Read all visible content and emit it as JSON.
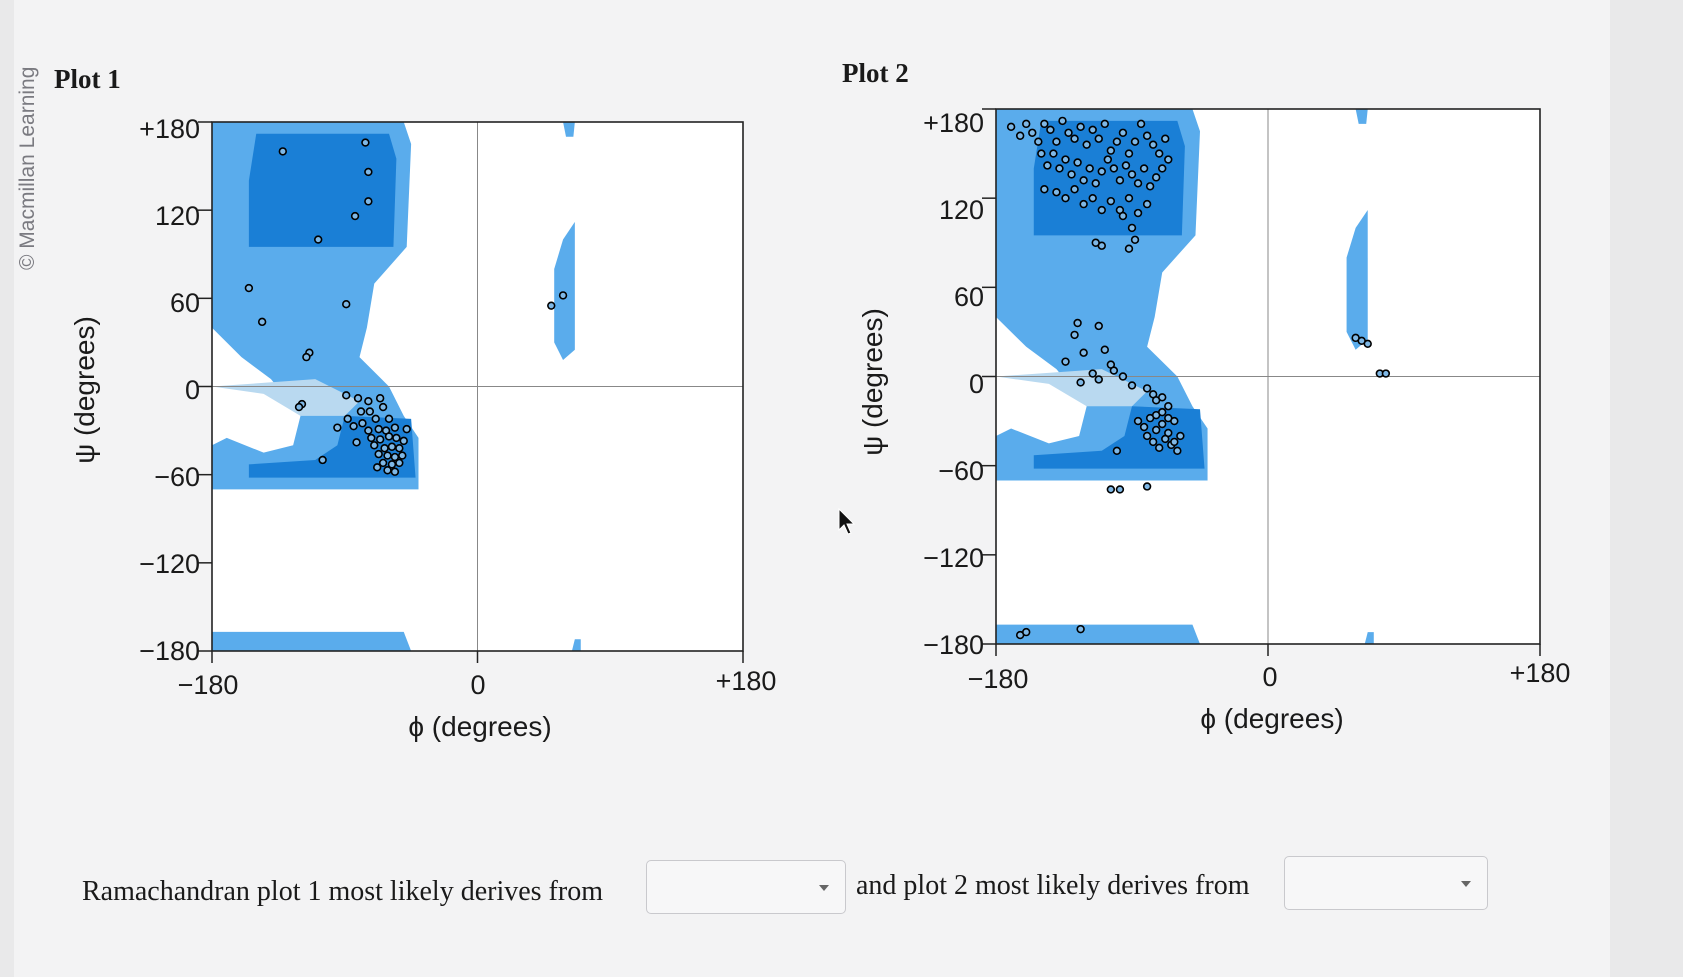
{
  "copyright": "© Macmillan Learning",
  "colors": {
    "core_region": "#1a7fd6",
    "allowed_region": "#5aacec",
    "generous_region": "#b9d9f0",
    "point_fill": "#7fb8e6",
    "point_stroke": "#000000"
  },
  "question": {
    "part1": "Ramachandran plot 1 most likely derives from",
    "part2": "and plot 2 most likely derives from"
  },
  "dropdown1": {
    "value": ""
  },
  "dropdown2": {
    "value": ""
  },
  "plots": [
    {
      "title": "Plot 1",
      "xlabel": "ϕ (degrees)",
      "ylabel": "ψ (degrees)",
      "xticks": [
        "−180",
        "0",
        "+180"
      ],
      "yticks": [
        "+180",
        "120",
        "60",
        "0",
        "−60",
        "−120",
        "−180"
      ]
    },
    {
      "title": "Plot 2",
      "xlabel": "ϕ (degrees)",
      "ylabel": "ψ (degrees)",
      "xticks": [
        "−180",
        "0",
        "+180"
      ],
      "yticks": [
        "+180",
        "120",
        "60",
        "0",
        "−60",
        "−120",
        "−180"
      ]
    }
  ],
  "chart_data": [
    {
      "type": "scatter",
      "title": "Plot 1",
      "xlabel": "ϕ (degrees)",
      "ylabel": "ψ (degrees)",
      "xlim": [
        -180,
        180
      ],
      "ylim": [
        -180,
        180
      ],
      "points": [
        [
          -132,
          160
        ],
        [
          -76,
          166
        ],
        [
          -74,
          146
        ],
        [
          -74,
          126
        ],
        [
          -83,
          116
        ],
        [
          -108,
          100
        ],
        [
          -155,
          67
        ],
        [
          -146,
          44
        ],
        [
          -89,
          56
        ],
        [
          -114,
          23
        ],
        [
          -116,
          20
        ],
        [
          -119,
          -12
        ],
        [
          -121,
          -14
        ],
        [
          -89,
          -6
        ],
        [
          -81,
          -8
        ],
        [
          -74,
          -10
        ],
        [
          -66,
          -8
        ],
        [
          -79,
          -17
        ],
        [
          -73,
          -17
        ],
        [
          -64,
          -14
        ],
        [
          -84,
          -27
        ],
        [
          -78,
          -25
        ],
        [
          -69,
          -22
        ],
        [
          -60,
          -22
        ],
        [
          -74,
          -30
        ],
        [
          -67,
          -29
        ],
        [
          -62,
          -30
        ],
        [
          -56,
          -28
        ],
        [
          -72,
          -35
        ],
        [
          -66,
          -36
        ],
        [
          -60,
          -34
        ],
        [
          -55,
          -35
        ],
        [
          -50,
          -37
        ],
        [
          -70,
          -40
        ],
        [
          -63,
          -42
        ],
        [
          -58,
          -41
        ],
        [
          -53,
          -42
        ],
        [
          -67,
          -46
        ],
        [
          -61,
          -47
        ],
        [
          -56,
          -48
        ],
        [
          -51,
          -47
        ],
        [
          -64,
          -52
        ],
        [
          -58,
          -53
        ],
        [
          -53,
          -52
        ],
        [
          -61,
          -57
        ],
        [
          -56,
          -58
        ],
        [
          -68,
          -55
        ],
        [
          -105,
          -50
        ],
        [
          -95,
          -28
        ],
        [
          -88,
          -22
        ],
        [
          -82,
          -38
        ],
        [
          -48,
          -29
        ],
        [
          50,
          55
        ],
        [
          58,
          62
        ]
      ]
    },
    {
      "type": "scatter",
      "title": "Plot 2",
      "xlabel": "ϕ (degrees)",
      "ylabel": "ψ (degrees)",
      "xlim": [
        -180,
        180
      ],
      "ylim": [
        -180,
        180
      ],
      "points": [
        [
          -170,
          168
        ],
        [
          -164,
          162
        ],
        [
          -160,
          170
        ],
        [
          -156,
          164
        ],
        [
          -152,
          158
        ],
        [
          -148,
          170
        ],
        [
          -144,
          166
        ],
        [
          -140,
          158
        ],
        [
          -136,
          172
        ],
        [
          -132,
          164
        ],
        [
          -128,
          160
        ],
        [
          -124,
          168
        ],
        [
          -120,
          156
        ],
        [
          -116,
          166
        ],
        [
          -112,
          160
        ],
        [
          -108,
          170
        ],
        [
          -104,
          152
        ],
        [
          -100,
          158
        ],
        [
          -96,
          164
        ],
        [
          -92,
          150
        ],
        [
          -88,
          158
        ],
        [
          -84,
          170
        ],
        [
          -80,
          162
        ],
        [
          -76,
          156
        ],
        [
          -72,
          150
        ],
        [
          -68,
          160
        ],
        [
          -66,
          146
        ],
        [
          -150,
          150
        ],
        [
          -146,
          142
        ],
        [
          -142,
          150
        ],
        [
          -138,
          140
        ],
        [
          -134,
          146
        ],
        [
          -130,
          136
        ],
        [
          -126,
          144
        ],
        [
          -122,
          132
        ],
        [
          -118,
          140
        ],
        [
          -114,
          130
        ],
        [
          -110,
          138
        ],
        [
          -106,
          146
        ],
        [
          -102,
          140
        ],
        [
          -98,
          132
        ],
        [
          -94,
          142
        ],
        [
          -90,
          136
        ],
        [
          -86,
          130
        ],
        [
          -82,
          140
        ],
        [
          -78,
          128
        ],
        [
          -74,
          134
        ],
        [
          -70,
          140
        ],
        [
          -148,
          126
        ],
        [
          -140,
          124
        ],
        [
          -134,
          120
        ],
        [
          -128,
          126
        ],
        [
          -122,
          116
        ],
        [
          -116,
          120
        ],
        [
          -110,
          112
        ],
        [
          -104,
          118
        ],
        [
          -98,
          112
        ],
        [
          -92,
          120
        ],
        [
          -86,
          110
        ],
        [
          -80,
          116
        ],
        [
          -96,
          108
        ],
        [
          -90,
          100
        ],
        [
          -88,
          92
        ],
        [
          -92,
          86
        ],
        [
          -110,
          88
        ],
        [
          -114,
          90
        ],
        [
          -126,
          36
        ],
        [
          -112,
          34
        ],
        [
          -128,
          28
        ],
        [
          -122,
          16
        ],
        [
          -108,
          18
        ],
        [
          -104,
          8
        ],
        [
          -134,
          10
        ],
        [
          -116,
          2
        ],
        [
          -112,
          -2
        ],
        [
          -124,
          -4
        ],
        [
          -102,
          4
        ],
        [
          -96,
          0
        ],
        [
          -90,
          -6
        ],
        [
          -80,
          -8
        ],
        [
          -76,
          -12
        ],
        [
          -74,
          -16
        ],
        [
          -70,
          -14
        ],
        [
          -66,
          -20
        ],
        [
          -86,
          -30
        ],
        [
          -82,
          -34
        ],
        [
          -78,
          -28
        ],
        [
          -74,
          -26
        ],
        [
          -70,
          -32
        ],
        [
          -66,
          -38
        ],
        [
          -62,
          -30
        ],
        [
          -58,
          -40
        ],
        [
          -80,
          -40
        ],
        [
          -76,
          -44
        ],
        [
          -72,
          -48
        ],
        [
          -68,
          -42
        ],
        [
          -64,
          -46
        ],
        [
          -60,
          -50
        ],
        [
          -74,
          -36
        ],
        [
          -70,
          -24
        ],
        [
          -66,
          -28
        ],
        [
          -62,
          -44
        ],
        [
          -100,
          -50
        ],
        [
          -104,
          -76
        ],
        [
          -98,
          -76
        ],
        [
          -80,
          -74
        ],
        [
          -164,
          -174
        ],
        [
          -160,
          -172
        ],
        [
          -124,
          -170
        ],
        [
          58,
          26
        ],
        [
          62,
          24
        ],
        [
          66,
          22
        ],
        [
          74,
          2
        ],
        [
          78,
          2
        ]
      ]
    }
  ]
}
